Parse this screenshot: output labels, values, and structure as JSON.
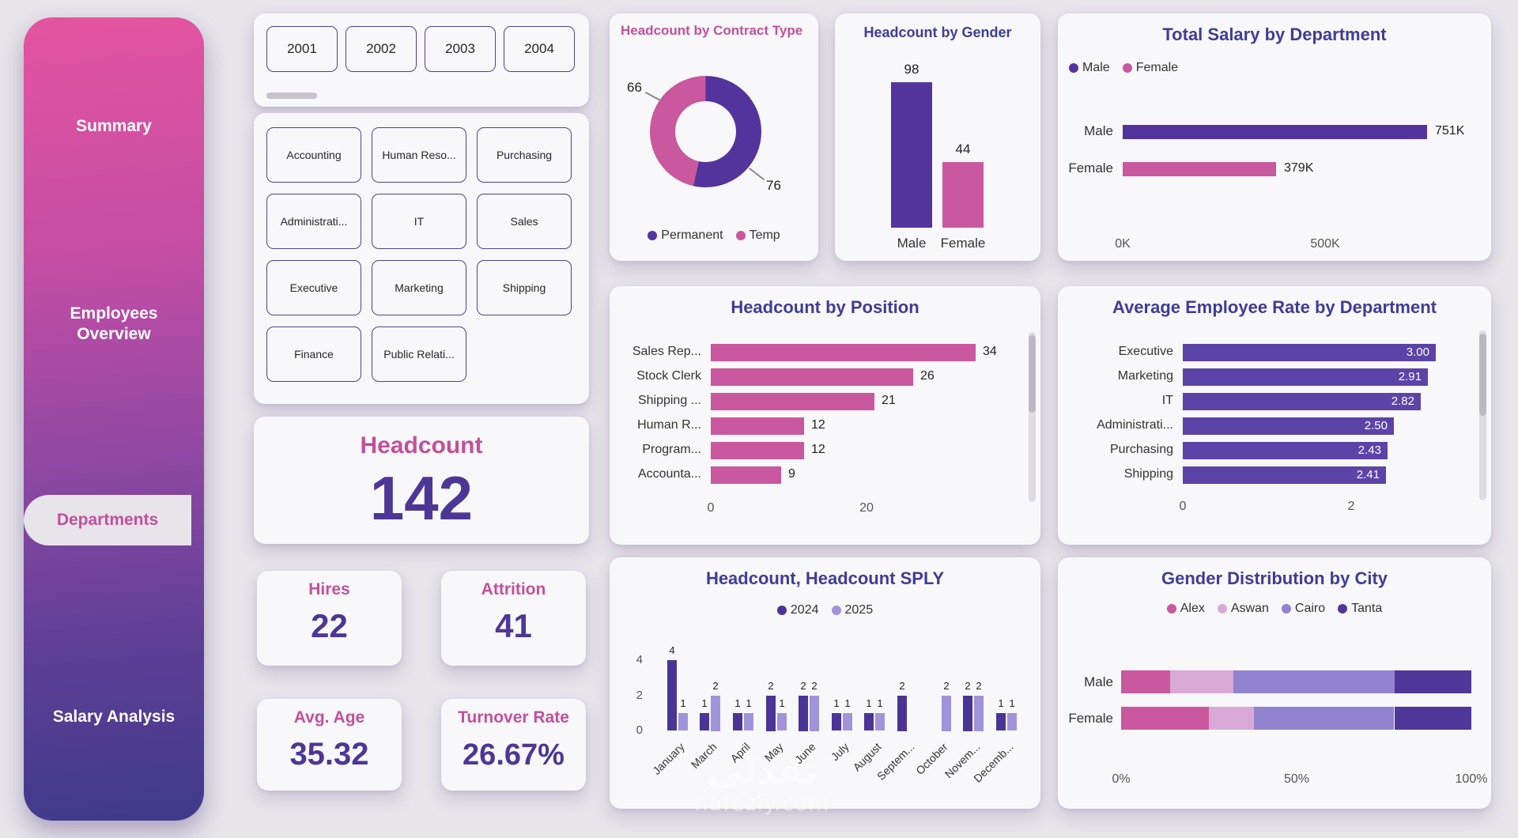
{
  "colors": {
    "purple": "#4c3796",
    "pink": "#c9589e",
    "title_purple": "#403c96",
    "title_pink": "#c2509b",
    "purple_2025": "#a193da",
    "background": "#e7e4ea"
  },
  "sidebar": {
    "items": [
      {
        "label": "Summary",
        "active": false
      },
      {
        "label": "Employees Overview",
        "active": false
      },
      {
        "label": "Departments",
        "active": true
      },
      {
        "label": "Salary Analysis",
        "active": false
      }
    ]
  },
  "filters": {
    "years": [
      "2001",
      "2002",
      "2003",
      "2004"
    ],
    "departments": [
      "Accounting",
      "Human Reso...",
      "Purchasing",
      "Administrati...",
      "IT",
      "Sales",
      "Executive",
      "Marketing",
      "Shipping",
      "Finance",
      "Public Relati..."
    ]
  },
  "kpis": {
    "headcount": {
      "title": "Headcount",
      "value": "142"
    },
    "hires": {
      "title": "Hires",
      "value": "22"
    },
    "attrition": {
      "title": "Attrition",
      "value": "41"
    },
    "avg_age": {
      "title": "Avg. Age",
      "value": "35.32"
    },
    "turnover": {
      "title": "Turnover Rate",
      "value": "26.67%"
    }
  },
  "watermark": {
    "line1": "نفذلي",
    "line2": "nafezly.com"
  },
  "chart_data": [
    {
      "id": "contract_type",
      "type": "pie",
      "donut": true,
      "title": "Headcount by Contract Type",
      "labels": [
        "Permanent",
        "Temp"
      ],
      "values": [
        76,
        66
      ],
      "colors": [
        "#53349d",
        "#c9589e"
      ],
      "legend_position": "bottom"
    },
    {
      "id": "gender",
      "type": "bar",
      "orientation": "vertical",
      "title": "Headcount by Gender",
      "categories": [
        "Male",
        "Female"
      ],
      "values": [
        98,
        44
      ],
      "colors": [
        "#53349d",
        "#c9589e"
      ],
      "ymax": 98,
      "data_labels": true
    },
    {
      "id": "salary_dept",
      "type": "bar",
      "orientation": "horizontal",
      "title": "Total Salary by Department",
      "legend": [
        "Male",
        "Female"
      ],
      "categories": [
        "Male",
        "Female"
      ],
      "values": [
        751,
        379
      ],
      "value_labels": [
        "751K",
        "379K"
      ],
      "colors": [
        "#53349d",
        "#c9589e"
      ],
      "xticks": [
        "0K",
        "500K"
      ],
      "xtick_values": [
        0,
        500
      ],
      "xmax": 780
    },
    {
      "id": "position",
      "type": "bar",
      "orientation": "horizontal",
      "title": "Headcount by Position",
      "categories": [
        "Sales Rep...",
        "Stock Clerk",
        "Shipping ...",
        "Human R...",
        "Program...",
        "Accounta..."
      ],
      "values": [
        34,
        26,
        21,
        12,
        12,
        9
      ],
      "color": "#c9589e",
      "xticks": [
        0,
        20
      ],
      "xmax": 34
    },
    {
      "id": "avg_rate",
      "type": "bar",
      "orientation": "horizontal",
      "title": "Average Employee Rate by Department",
      "categories": [
        "Executive",
        "Marketing",
        "IT",
        "Administrati...",
        "Purchasing",
        "Shipping"
      ],
      "values": [
        3.0,
        2.91,
        2.82,
        2.5,
        2.43,
        2.41
      ],
      "value_labels": [
        "3.00",
        "2.91",
        "2.82",
        "2.50",
        "2.43",
        "2.41"
      ],
      "color": "#5b43a8",
      "xticks": [
        0,
        2
      ],
      "xmax": 3
    },
    {
      "id": "sply",
      "type": "bar",
      "grouped": true,
      "title": "Headcount, Headcount SPLY",
      "categories": [
        "January",
        "March",
        "April",
        "May",
        "June",
        "July",
        "August",
        "Septem...",
        "October",
        "Novem...",
        "Decemb..."
      ],
      "series": [
        {
          "name": "2024",
          "color": "#4a3597",
          "values": [
            4,
            1,
            1,
            2,
            2,
            1,
            1,
            2,
            0,
            2,
            1
          ]
        },
        {
          "name": "2025",
          "color": "#a193da",
          "values": [
            1,
            2,
            1,
            1,
            2,
            1,
            1,
            0,
            2,
            2,
            1
          ]
        }
      ],
      "yticks": [
        0,
        2,
        4
      ],
      "ymax": 4
    },
    {
      "id": "gender_city",
      "type": "bar",
      "stacked": "percent",
      "title": "Gender Distribution by City",
      "legend": [
        "Alex",
        "Aswan",
        "Cairo",
        "Tanta"
      ],
      "colors": [
        "#c9589e",
        "#d9a9d6",
        "#9183cf",
        "#4f3799"
      ],
      "categories": [
        "Male",
        "Female"
      ],
      "series": [
        {
          "name": "Male",
          "values": [
            14,
            18,
            46,
            22
          ]
        },
        {
          "name": "Female",
          "values": [
            25,
            13,
            40,
            22
          ]
        }
      ],
      "xticks": [
        "0%",
        "50%",
        "100%"
      ]
    }
  ]
}
